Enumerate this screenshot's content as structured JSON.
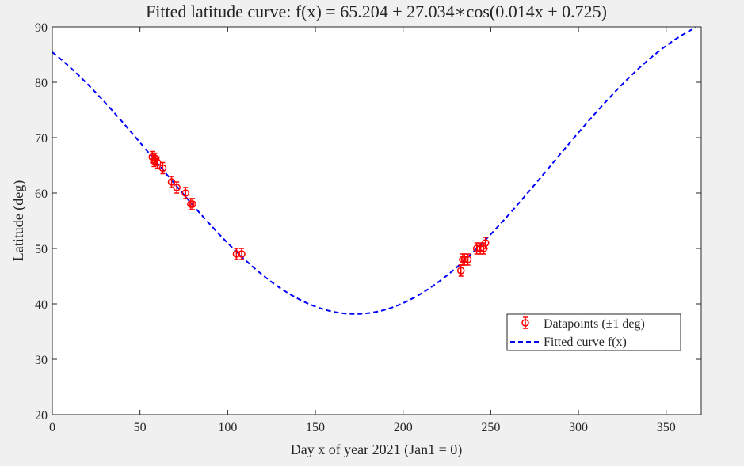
{
  "chart_data": {
    "type": "scatter",
    "title": "Fitted latitude curve: f(x) = 65.204 + 27.034∗cos(0.014x + 0.725)",
    "xlabel": "Day x of year 2021 (Jan1 = 0)",
    "ylabel": "Latitude (deg)",
    "xlim": [
      0,
      370
    ],
    "ylim": [
      20,
      90
    ],
    "xticks": [
      0,
      50,
      100,
      150,
      200,
      250,
      300,
      350
    ],
    "yticks": [
      20,
      30,
      40,
      50,
      60,
      70,
      80,
      90
    ],
    "grid": false,
    "legend_position": "lower-right",
    "fit": {
      "a": 65.204,
      "b": 27.034,
      "c": 0.014,
      "d": 0.725
    },
    "series": [
      {
        "name": "Datapoints (±1 deg)",
        "style": "errorbar-markers",
        "color": "#ff0000",
        "error": 1,
        "x": [
          57,
          58,
          59,
          60,
          63,
          68,
          71,
          76,
          79,
          80,
          105,
          108,
          233,
          234,
          235,
          237,
          242,
          244,
          246,
          247
        ],
        "y": [
          66.5,
          65.8,
          66.2,
          65.5,
          64.5,
          62,
          61,
          60,
          58,
          58,
          49,
          49,
          46,
          48,
          48,
          48,
          50,
          50,
          50,
          51
        ]
      },
      {
        "name": "Fitted curve f(x)",
        "style": "dashed-line",
        "color": "#0000ff"
      }
    ]
  }
}
